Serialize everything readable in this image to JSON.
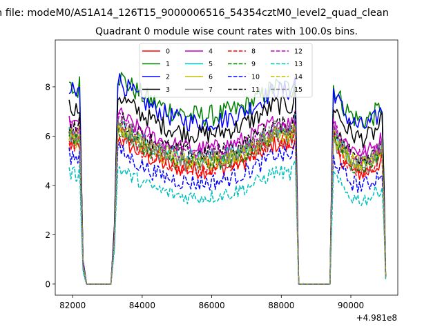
{
  "suptitle": "n file: modeM0/AS1A14_126T15_9000006516_54354cztM0_level2_quad_clean",
  "chart_data": {
    "type": "line",
    "title": "Quadrant 0 module wise count rates with 100.0s bins.",
    "xlabel": "",
    "ylabel": "",
    "x_offset_label": "+4.981e8",
    "xlim": [
      81500,
      91350
    ],
    "ylim": [
      -0.45,
      9.9
    ],
    "xticks": [
      82000,
      84000,
      86000,
      88000,
      90000
    ],
    "xtick_labels": [
      "82000",
      "84000",
      "86000",
      "88000",
      "90000"
    ],
    "yticks": [
      0,
      2,
      4,
      6,
      8
    ],
    "ytick_labels": [
      "0",
      "2",
      "4",
      "6",
      "8"
    ],
    "legend": {
      "placement": "top-center",
      "columns": 4
    },
    "x_profile": [
      81900,
      82000,
      82100,
      82200,
      82300,
      82400,
      83100,
      83200,
      83300,
      88300,
      88400,
      88500,
      89400,
      89500,
      90900,
      91000
    ],
    "y_profile": [
      1,
      1,
      0.98,
      1.02,
      0.12,
      0,
      0,
      0.3,
      1.12,
      1.0,
      1.08,
      0,
      0,
      1.1,
      1.0,
      0.05
    ],
    "series": [
      {
        "name": "0",
        "color": "#ff0000",
        "style": "solid",
        "base": 5.6,
        "dip": 0.85,
        "amp": 0.35
      },
      {
        "name": "1",
        "color": "#008000",
        "style": "solid",
        "base": 7.9,
        "dip": 1.0,
        "amp": 0.45
      },
      {
        "name": "2",
        "color": "#0000ff",
        "style": "solid",
        "base": 7.8,
        "dip": 1.1,
        "amp": 0.4
      },
      {
        "name": "3",
        "color": "#000000",
        "style": "solid",
        "base": 7.2,
        "dip": 1.0,
        "amp": 0.4
      },
      {
        "name": "4",
        "color": "#bf00bf",
        "style": "solid",
        "base": 6.5,
        "dip": 0.9,
        "amp": 0.35
      },
      {
        "name": "5",
        "color": "#00bfbf",
        "style": "solid",
        "base": 6.1,
        "dip": 0.85,
        "amp": 0.35
      },
      {
        "name": "6",
        "color": "#bfbf00",
        "style": "solid",
        "base": 6.0,
        "dip": 0.85,
        "amp": 0.35
      },
      {
        "name": "7",
        "color": "#808080",
        "style": "solid",
        "base": 5.9,
        "dip": 0.9,
        "amp": 0.35
      },
      {
        "name": "8",
        "color": "#ff0000",
        "style": "dashed",
        "base": 5.8,
        "dip": 0.9,
        "amp": 0.35
      },
      {
        "name": "9",
        "color": "#008000",
        "style": "dashed",
        "base": 6.0,
        "dip": 0.95,
        "amp": 0.35
      },
      {
        "name": "10",
        "color": "#0000ff",
        "style": "dashed",
        "base": 5.2,
        "dip": 0.9,
        "amp": 0.35
      },
      {
        "name": "11",
        "color": "#000000",
        "style": "dashed",
        "base": 6.4,
        "dip": 0.95,
        "amp": 0.35
      },
      {
        "name": "12",
        "color": "#bf00bf",
        "style": "dashed",
        "base": 6.3,
        "dip": 0.9,
        "amp": 0.35
      },
      {
        "name": "13",
        "color": "#00bfbf",
        "style": "dashed",
        "base": 4.5,
        "dip": 0.8,
        "amp": 0.3
      },
      {
        "name": "14",
        "color": "#bfbf00",
        "style": "dashed",
        "base": 6.0,
        "dip": 0.9,
        "amp": 0.35
      },
      {
        "name": "15",
        "color": "#808080",
        "style": "dashed",
        "base": 6.2,
        "dip": 0.95,
        "amp": 0.35
      }
    ]
  }
}
